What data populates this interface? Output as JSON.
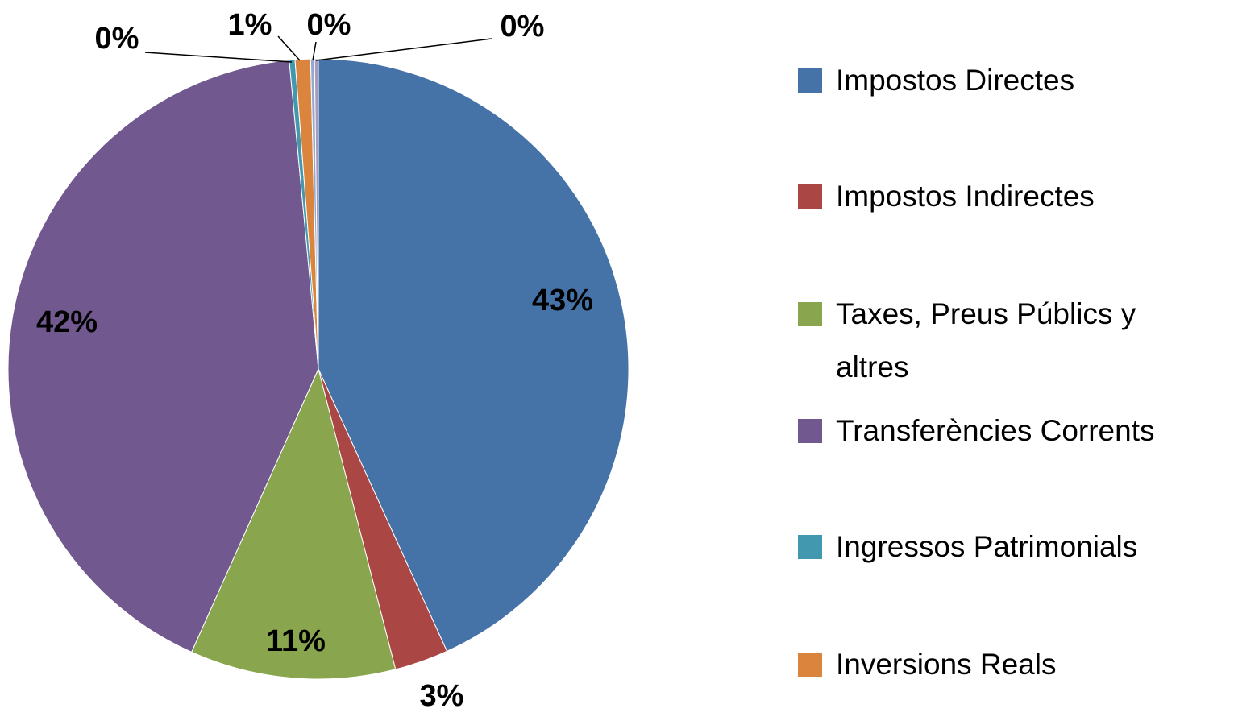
{
  "chart_data": {
    "type": "pie",
    "categories": [
      "Impostos Directes",
      "Impostos Indirectes",
      "Taxes, Preus Públics y altres",
      "Transferències Corrents",
      "Ingressos Patrimonials",
      "Inversions Reals",
      null,
      null
    ],
    "values": [
      43.2,
      2.8,
      10.7,
      41.8,
      0.3,
      0.8,
      0.2,
      0.2
    ],
    "value_labels": [
      "43%",
      "3%",
      "11%",
      "42%",
      "0%",
      "1%",
      "0%",
      "0%"
    ],
    "colors": [
      "#4572a7",
      "#aa4643",
      "#89a54e",
      "#71588f",
      "#4198af",
      "#db843d",
      "#93a9cf",
      "#a99bbd"
    ],
    "legend": "right"
  }
}
